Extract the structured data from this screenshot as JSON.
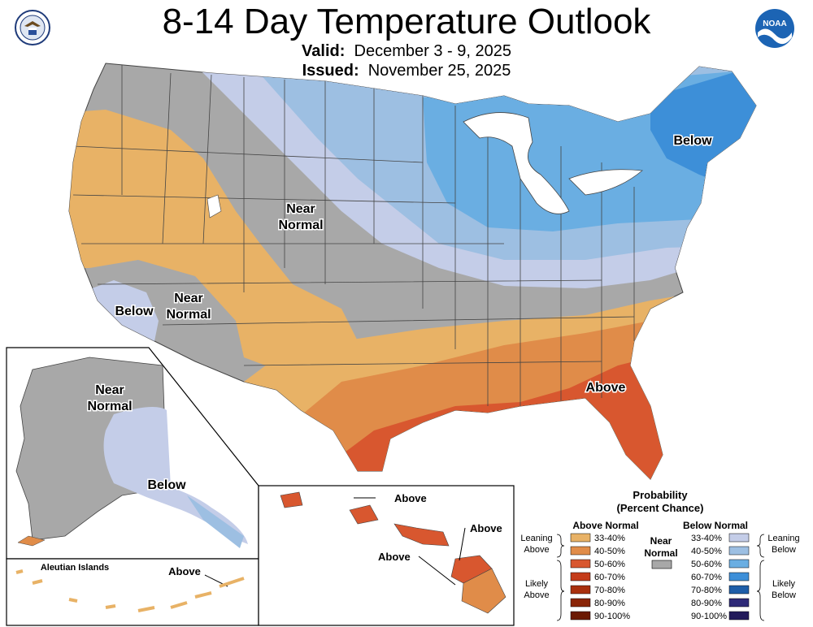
{
  "header": {
    "title": "8-14 Day Temperature Outlook",
    "valid_label": "Valid:",
    "valid_value": "December 3 - 9, 2025",
    "issued_label": "Issued:",
    "issued_value": "November 25, 2025"
  },
  "logos": {
    "left": "department-of-commerce-seal",
    "right_text": "NOAA"
  },
  "map_labels": {
    "northeast": "Below",
    "rockies_near": "Near",
    "rockies_normal": "Normal",
    "socal": "Below",
    "southwest_near": "Near",
    "southwest_normal": "Normal",
    "southeast": "Above"
  },
  "alaska": {
    "near": "Near",
    "normal": "Normal",
    "below": "Below",
    "aleutian_title": "Aleutian Islands",
    "aleutian_above": "Above"
  },
  "hawaii": {
    "above_1": "Above",
    "above_2": "Above",
    "above_3": "Above"
  },
  "legend": {
    "title_1": "Probability",
    "title_2": "(Percent Chance)",
    "above_header": "Above Normal",
    "below_header": "Below Normal",
    "near_1": "Near",
    "near_2": "Normal",
    "leaning_above_1": "Leaning",
    "leaning_above_2": "Above",
    "likely_above_1": "Likely",
    "likely_above_2": "Above",
    "leaning_below_1": "Leaning",
    "leaning_below_2": "Below",
    "likely_below_1": "Likely",
    "likely_below_2": "Below",
    "above_bins": [
      {
        "label": "33-40%",
        "color": "#e8b266"
      },
      {
        "label": "40-50%",
        "color": "#e08c49"
      },
      {
        "label": "50-60%",
        "color": "#d8572f"
      },
      {
        "label": "60-70%",
        "color": "#c43c1a"
      },
      {
        "label": "70-80%",
        "color": "#a8300e"
      },
      {
        "label": "80-90%",
        "color": "#8a2507"
      },
      {
        "label": "90-100%",
        "color": "#6b1a03"
      }
    ],
    "below_bins": [
      {
        "label": "33-40%",
        "color": "#c4cde8"
      },
      {
        "label": "40-50%",
        "color": "#9dbfe2"
      },
      {
        "label": "50-60%",
        "color": "#6aaee2"
      },
      {
        "label": "60-70%",
        "color": "#3d8fd8"
      },
      {
        "label": "70-80%",
        "color": "#1e5ea8"
      },
      {
        "label": "80-90%",
        "color": "#2e2a78"
      },
      {
        "label": "90-100%",
        "color": "#221a5a"
      }
    ],
    "near_color": "#a8a8a8"
  }
}
